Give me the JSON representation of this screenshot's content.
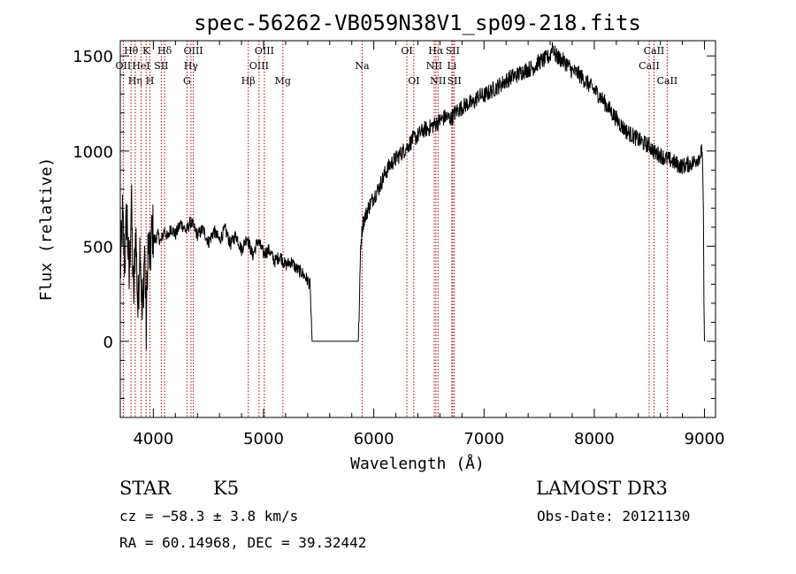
{
  "chart_data": {
    "type": "line",
    "title": "spec-56262-VB059N38V1_sp09-218.fits",
    "xlabel": "Wavelength (Å)",
    "ylabel": "Flux (relative)",
    "xlim": [
      3700,
      9100
    ],
    "ylim": [
      -400,
      1580
    ],
    "xticks": [
      4000,
      5000,
      6000,
      7000,
      8000,
      9000
    ],
    "yticks": [
      0,
      500,
      1000,
      1500
    ],
    "series": [
      {
        "name": "flux",
        "color": "#000000",
        "x": [
          3700,
          3720,
          3740,
          3760,
          3780,
          3800,
          3820,
          3840,
          3860,
          3880,
          3900,
          3920,
          3935,
          3950,
          3970,
          3990,
          4010,
          4040,
          4070,
          4100,
          4130,
          4160,
          4200,
          4250,
          4300,
          4340,
          4400,
          4450,
          4500,
          4550,
          4600,
          4650,
          4700,
          4750,
          4800,
          4850,
          4900,
          4950,
          5000,
          5050,
          5100,
          5150,
          5200,
          5250,
          5300,
          5350,
          5400,
          5420,
          5435,
          5440,
          5500,
          5600,
          5700,
          5800,
          5860,
          5870,
          5880,
          5900,
          5950,
          6000,
          6050,
          6100,
          6150,
          6200,
          6250,
          6300,
          6350,
          6400,
          6450,
          6500,
          6550,
          6600,
          6650,
          6700,
          6750,
          6800,
          6850,
          6900,
          6950,
          7000,
          7050,
          7100,
          7150,
          7200,
          7250,
          7300,
          7350,
          7400,
          7450,
          7500,
          7550,
          7600,
          7620,
          7650,
          7700,
          7750,
          7800,
          7850,
          7900,
          7950,
          8000,
          8050,
          8100,
          8150,
          8200,
          8250,
          8300,
          8350,
          8400,
          8450,
          8500,
          8550,
          8600,
          8650,
          8700,
          8750,
          8800,
          8850,
          8900,
          8950,
          8980,
          8990,
          8995,
          9000
        ],
        "values": [
          350,
          650,
          400,
          700,
          300,
          750,
          200,
          600,
          150,
          550,
          100,
          500,
          50,
          520,
          420,
          600,
          530,
          560,
          520,
          590,
          540,
          600,
          560,
          620,
          580,
          630,
          560,
          590,
          520,
          580,
          530,
          590,
          510,
          560,
          480,
          550,
          450,
          530,
          460,
          480,
          420,
          450,
          400,
          420,
          380,
          360,
          320,
          300,
          100,
          0,
          0,
          0,
          0,
          0,
          0,
          200,
          500,
          620,
          700,
          760,
          810,
          880,
          930,
          960,
          990,
          1020,
          1060,
          1080,
          1110,
          1120,
          1140,
          1160,
          1180,
          1170,
          1210,
          1230,
          1250,
          1250,
          1290,
          1290,
          1310,
          1330,
          1350,
          1370,
          1390,
          1400,
          1420,
          1430,
          1440,
          1470,
          1480,
          1500,
          1560,
          1500,
          1480,
          1460,
          1420,
          1410,
          1380,
          1350,
          1320,
          1290,
          1250,
          1210,
          1170,
          1130,
          1100,
          1080,
          1060,
          1040,
          1030,
          990,
          980,
          960,
          950,
          930,
          920,
          930,
          940,
          970,
          1000,
          700,
          200,
          0
        ]
      }
    ],
    "lines": [
      {
        "label": "OII",
        "x": 3727,
        "row": 2
      },
      {
        "label": "Hθ",
        "x": 3798,
        "row": 1
      },
      {
        "label": "Hη",
        "x": 3835,
        "row": 3
      },
      {
        "label": "HeI",
        "x": 3889,
        "row": 2
      },
      {
        "label": "K",
        "x": 3934,
        "row": 1
      },
      {
        "label": "H",
        "x": 3969,
        "row": 3
      },
      {
        "label": "SII",
        "x": 4072,
        "row": 2
      },
      {
        "label": "Hδ",
        "x": 4102,
        "row": 1
      },
      {
        "label": "G",
        "x": 4305,
        "row": 3
      },
      {
        "label": "Hγ",
        "x": 4341,
        "row": 2
      },
      {
        "label": "OIII",
        "x": 4363,
        "row": 1
      },
      {
        "label": "Hβ",
        "x": 4861,
        "row": 3
      },
      {
        "label": "OIII",
        "x": 4959,
        "row": 2
      },
      {
        "label": "OIII",
        "x": 5007,
        "row": 1
      },
      {
        "label": "Mg",
        "x": 5175,
        "row": 3
      },
      {
        "label": "Na",
        "x": 5894,
        "row": 2
      },
      {
        "label": "OI",
        "x": 6300,
        "row": 1
      },
      {
        "label": "OI",
        "x": 6363,
        "row": 3
      },
      {
        "label": "NII",
        "x": 6548,
        "row": 2
      },
      {
        "label": "Hα",
        "x": 6563,
        "row": 1
      },
      {
        "label": "NII",
        "x": 6583,
        "row": 3
      },
      {
        "label": "Li",
        "x": 6708,
        "row": 2
      },
      {
        "label": "SII",
        "x": 6716,
        "row": 1
      },
      {
        "label": "SII",
        "x": 6731,
        "row": 3
      },
      {
        "label": "CaII",
        "x": 8498,
        "row": 2
      },
      {
        "label": "CaII",
        "x": 8542,
        "row": 1
      },
      {
        "label": "CaII",
        "x": 8662,
        "row": 3
      }
    ]
  },
  "info": {
    "object_class": "STAR",
    "subclass": "K5",
    "survey": "LAMOST DR3",
    "cz": "cz = −58.3 ± 3.8 km/s",
    "obs_date": "Obs-Date: 20121130",
    "coords": "RA =  60.14968, DEC =  39.32442"
  }
}
